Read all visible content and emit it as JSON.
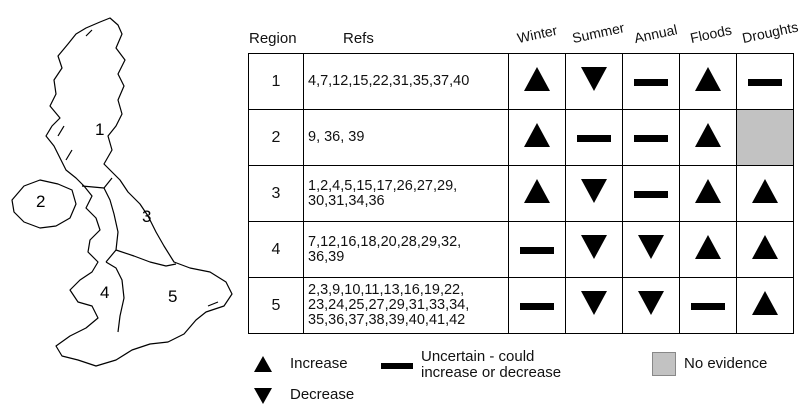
{
  "headers": {
    "region": "Region",
    "refs": "Refs",
    "columns": [
      "Winter",
      "Summer",
      "Annual",
      "Floods",
      "Droughts"
    ]
  },
  "map_labels": [
    "1",
    "2",
    "3",
    "4",
    "5"
  ],
  "rows": [
    {
      "region": "1",
      "refs": [
        "4,7,12,15,22,31,35,37,40"
      ],
      "symbols": [
        "increase",
        "decrease",
        "uncertain",
        "increase",
        "uncertain"
      ]
    },
    {
      "region": "2",
      "refs": [
        "9, 36, 39"
      ],
      "symbols": [
        "increase",
        "uncertain",
        "uncertain",
        "increase",
        "no-evidence"
      ]
    },
    {
      "region": "3",
      "refs": [
        "1,2,4,5,15,17,26,27,29,",
        "30,31,34,36"
      ],
      "symbols": [
        "increase",
        "decrease",
        "uncertain",
        "increase",
        "increase"
      ]
    },
    {
      "region": "4",
      "refs": [
        "7,12,16,18,20,28,29,32,",
        "36,39"
      ],
      "symbols": [
        "uncertain",
        "decrease",
        "decrease",
        "increase",
        "increase"
      ]
    },
    {
      "region": "5",
      "refs": [
        "2,3,9,10,11,13,16,19,22,",
        "23,24,25,27,29,31,33,34,",
        "35,36,37,38,39,40,41,42"
      ],
      "symbols": [
        "uncertain",
        "decrease",
        "decrease",
        "uncertain",
        "increase"
      ]
    }
  ],
  "legend": {
    "increase": "Increase",
    "decrease": "Decrease",
    "uncertain_line1": "Uncertain - could",
    "uncertain_line2": "increase or decrease",
    "no_evidence": "No evidence"
  },
  "colors": {
    "no_evidence": "#c2c2c2",
    "symbol": "#000000"
  }
}
